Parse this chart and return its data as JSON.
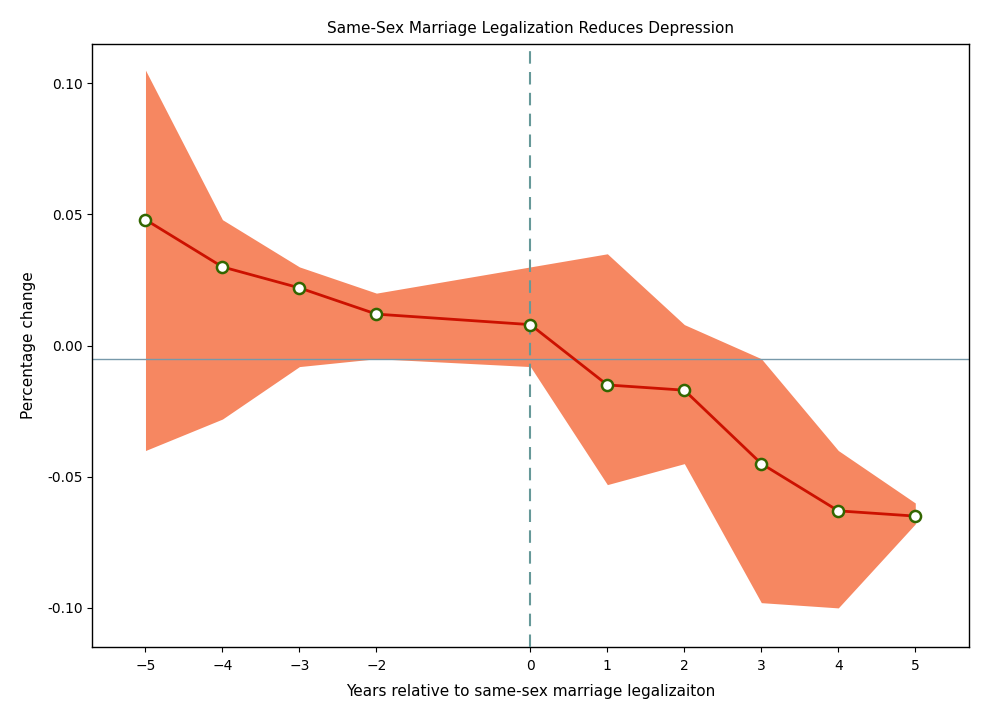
{
  "title": "Same-Sex Marriage Legalization Reduces Depression",
  "xlabel": "Years relative to same-sex marriage legalizaiton",
  "ylabel": "Percentage change",
  "x": [
    -5,
    -4,
    -3,
    -2,
    0,
    1,
    2,
    3,
    4,
    5
  ],
  "y": [
    0.048,
    0.03,
    0.022,
    0.012,
    0.008,
    -0.015,
    -0.017,
    -0.045,
    -0.063,
    -0.065
  ],
  "ci_upper": [
    0.105,
    0.048,
    0.03,
    0.02,
    0.03,
    0.035,
    0.008,
    -0.005,
    -0.04,
    -0.06
  ],
  "ci_lower": [
    -0.04,
    -0.028,
    -0.008,
    -0.005,
    -0.008,
    -0.053,
    -0.045,
    -0.098,
    -0.1,
    -0.068
  ],
  "hline_y": -0.005,
  "vline_x": 0,
  "xlim": [
    -5.7,
    5.7
  ],
  "ylim": [
    -0.115,
    0.115
  ],
  "yticks": [
    -0.1,
    -0.05,
    0.0,
    0.05,
    0.1
  ],
  "xticks": [
    -5,
    -4,
    -3,
    -2,
    0,
    1,
    2,
    3,
    4,
    5
  ],
  "fill_color": "#F4693A",
  "fill_alpha": 0.8,
  "line_color": "#CC1100",
  "marker_color": "#336600",
  "marker_face": "white",
  "hline_color": "#7799AA",
  "vline_color": "#669999",
  "background_color": "#FFFFFF",
  "title_fontsize": 11,
  "label_fontsize": 11,
  "tick_fontsize": 10
}
